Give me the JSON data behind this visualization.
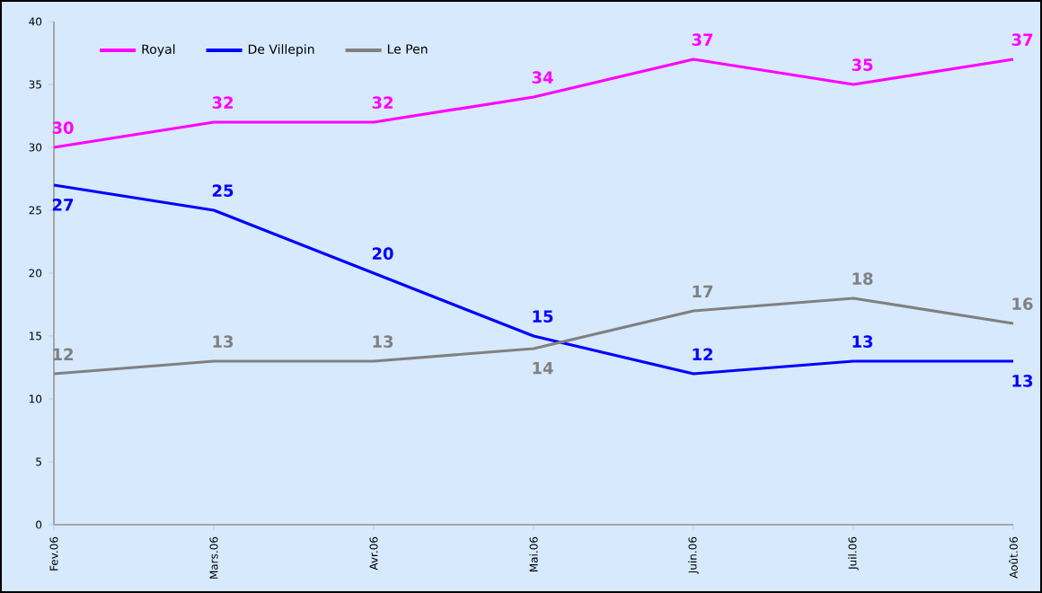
{
  "chart_data": {
    "type": "line",
    "categories": [
      "Fev.06",
      "Mars.06",
      "Avr.06",
      "Mai.06",
      "Juin.06",
      "Juil.06",
      "Août.06"
    ],
    "series": [
      {
        "name": "Royal",
        "color": "#ff00ff",
        "values": [
          30,
          32,
          32,
          34,
          37,
          35,
          37
        ]
      },
      {
        "name": "De Villepin",
        "color": "#0000ff",
        "values": [
          27,
          25,
          20,
          15,
          12,
          13,
          13
        ]
      },
      {
        "name": "Le Pen",
        "color": "#808080",
        "values": [
          12,
          13,
          13,
          14,
          17,
          18,
          16
        ]
      }
    ],
    "ylim": [
      0,
      40
    ],
    "yticks": [
      0,
      5,
      10,
      15,
      20,
      25,
      30,
      35,
      40
    ],
    "data_labels": true,
    "legend": "top left",
    "grid": false,
    "marker": "none",
    "line_style": "solid"
  }
}
